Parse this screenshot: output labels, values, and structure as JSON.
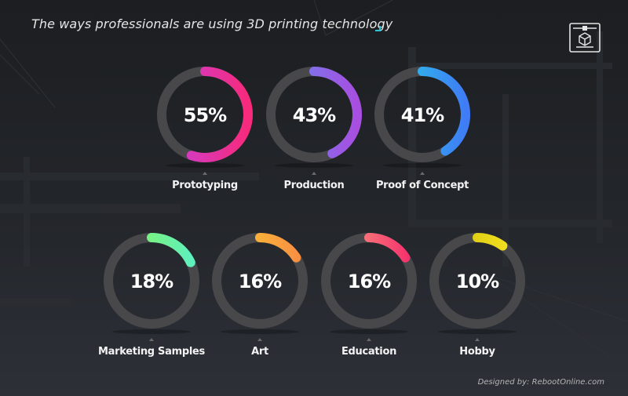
{
  "title": "The ways professionals are using 3D printing technology",
  "credit": "Designed by: RebootOnline.com",
  "icons": {
    "header": "3d-printer-icon"
  },
  "colors": {
    "track": "#48484a",
    "background": "#1e2024",
    "accent": "#2fc3d6"
  },
  "chart_data": {
    "type": "donut",
    "title": "The ways professionals are using 3D printing technology",
    "unit": "%",
    "categories": [
      "Prototyping",
      "Production",
      "Proof of Concept",
      "Marketing Samples",
      "Art",
      "Education",
      "Hobby"
    ],
    "values": [
      55,
      43,
      41,
      18,
      16,
      16,
      10
    ],
    "labels": [
      "55%",
      "43%",
      "41%",
      "18%",
      "16%",
      "16%",
      "10%"
    ],
    "gradients": [
      [
        "#c641db",
        "#f72a7c"
      ],
      [
        "#6389f2",
        "#a84ee0"
      ],
      [
        "#27d3e2",
        "#3f7cf6"
      ],
      [
        "#8ef34e",
        "#5ef0c2"
      ],
      [
        "#fbd030",
        "#f88c44"
      ],
      [
        "#fba882",
        "#f42d6c"
      ],
      [
        "#d2bc08",
        "#f5e624"
      ]
    ]
  }
}
